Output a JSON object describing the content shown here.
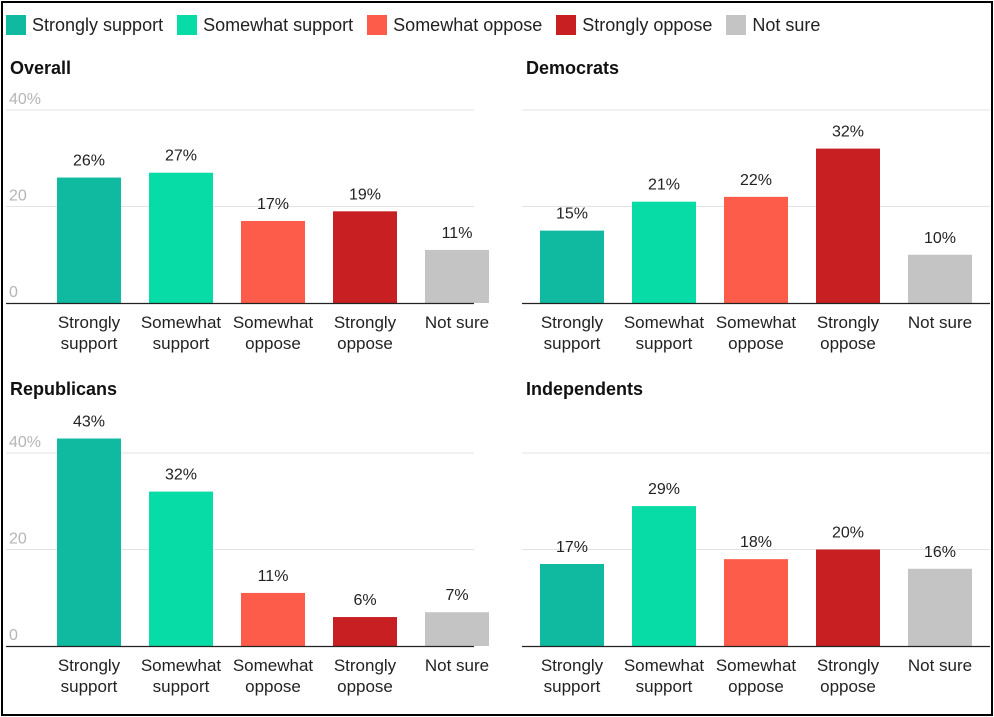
{
  "legend": [
    {
      "label": "Strongly support",
      "color": "#0fbaa0"
    },
    {
      "label": "Somewhat support",
      "color": "#08dca6"
    },
    {
      "label": "Somewhat oppose",
      "color": "#fe5c4a"
    },
    {
      "label": "Strongly oppose",
      "color": "#c71f22"
    },
    {
      "label": "Not sure",
      "color": "#c4c4c4"
    }
  ],
  "chart_data": [
    {
      "type": "bar",
      "title": "Overall",
      "categories": [
        [
          "Strongly",
          "support"
        ],
        [
          "Somewhat",
          "support"
        ],
        [
          "Somewhat",
          "oppose"
        ],
        [
          "Strongly",
          "oppose"
        ],
        [
          "Not sure"
        ]
      ],
      "values": [
        26,
        27,
        17,
        19,
        11
      ],
      "value_labels": [
        "26%",
        "27%",
        "17%",
        "19%",
        "11%"
      ],
      "colors": [
        "#0fbaa0",
        "#08dca6",
        "#fe5c4a",
        "#c71f22",
        "#c4c4c4"
      ],
      "yticks": [
        {
          "value": 0,
          "label": "0"
        },
        {
          "value": 20,
          "label": "20"
        },
        {
          "value": 40,
          "label": "40%"
        }
      ],
      "ylim": [
        0,
        40
      ],
      "grid": true
    },
    {
      "type": "bar",
      "title": "Democrats",
      "categories": [
        [
          "Strongly",
          "support"
        ],
        [
          "Somewhat",
          "support"
        ],
        [
          "Somewhat",
          "oppose"
        ],
        [
          "Strongly",
          "oppose"
        ],
        [
          "Not sure"
        ]
      ],
      "values": [
        15,
        21,
        22,
        32,
        10
      ],
      "value_labels": [
        "15%",
        "21%",
        "22%",
        "32%",
        "10%"
      ],
      "colors": [
        "#0fbaa0",
        "#08dca6",
        "#fe5c4a",
        "#c71f22",
        "#c4c4c4"
      ],
      "yticks": [
        {
          "value": 0,
          "label": ""
        },
        {
          "value": 20,
          "label": ""
        },
        {
          "value": 40,
          "label": ""
        }
      ],
      "ylim": [
        0,
        40
      ],
      "grid": true
    },
    {
      "type": "bar",
      "title": "Republicans",
      "categories": [
        [
          "Strongly",
          "support"
        ],
        [
          "Somewhat",
          "support"
        ],
        [
          "Somewhat",
          "oppose"
        ],
        [
          "Strongly",
          "oppose"
        ],
        [
          "Not sure"
        ]
      ],
      "values": [
        43,
        32,
        11,
        6,
        7
      ],
      "value_labels": [
        "43%",
        "32%",
        "11%",
        "6%",
        "7%"
      ],
      "colors": [
        "#0fbaa0",
        "#08dca6",
        "#fe5c4a",
        "#c71f22",
        "#c4c4c4"
      ],
      "yticks": [
        {
          "value": 0,
          "label": "0"
        },
        {
          "value": 20,
          "label": "20"
        },
        {
          "value": 40,
          "label": "40%"
        }
      ],
      "ylim": [
        0,
        40
      ],
      "grid": true
    },
    {
      "type": "bar",
      "title": "Independents",
      "categories": [
        [
          "Strongly",
          "support"
        ],
        [
          "Somewhat",
          "support"
        ],
        [
          "Somewhat",
          "oppose"
        ],
        [
          "Strongly",
          "oppose"
        ],
        [
          "Not sure"
        ]
      ],
      "values": [
        17,
        29,
        18,
        20,
        16
      ],
      "value_labels": [
        "17%",
        "29%",
        "18%",
        "20%",
        "16%"
      ],
      "colors": [
        "#0fbaa0",
        "#08dca6",
        "#fe5c4a",
        "#c71f22",
        "#c4c4c4"
      ],
      "yticks": [
        {
          "value": 0,
          "label": ""
        },
        {
          "value": 20,
          "label": ""
        },
        {
          "value": 40,
          "label": ""
        }
      ],
      "ylim": [
        0,
        40
      ],
      "grid": true
    }
  ]
}
